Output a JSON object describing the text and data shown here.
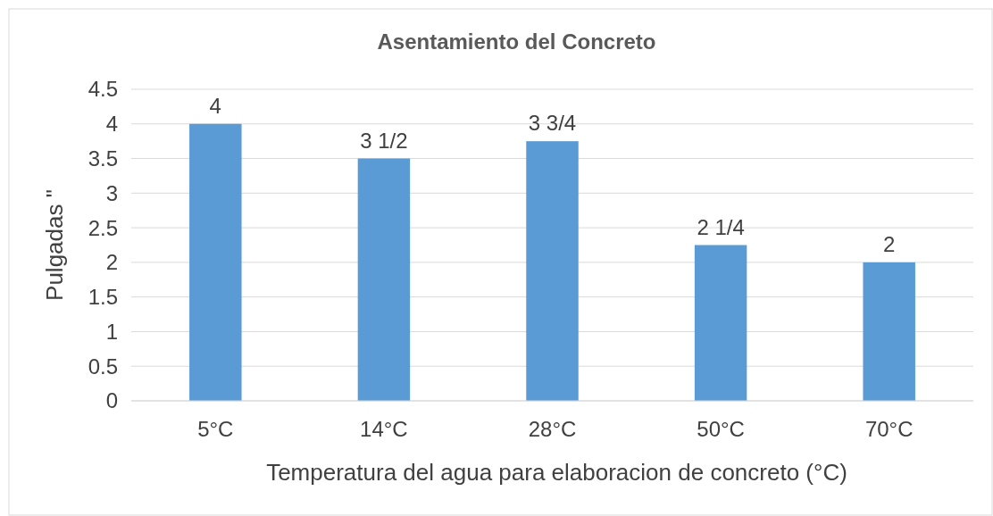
{
  "chart_data": {
    "type": "bar",
    "title": "Asentamiento del Concreto",
    "xlabel": "Temperatura del agua para elaboracion de concreto (°C)",
    "ylabel": "Pulgadas \"",
    "categories": [
      "5°C",
      "14°C",
      "28°C",
      "50°C",
      "70°C"
    ],
    "values": [
      4,
      3.5,
      3.75,
      2.25,
      2
    ],
    "value_labels": [
      "4",
      "3 1/2",
      "3 3/4",
      "2 1/4",
      "2"
    ],
    "color": "#5b9bd5",
    "ylim": [
      0,
      4.5
    ],
    "yticks": [
      0,
      0.5,
      1,
      1.5,
      2,
      2.5,
      3,
      3.5,
      4,
      4.5
    ],
    "grid": "y"
  }
}
